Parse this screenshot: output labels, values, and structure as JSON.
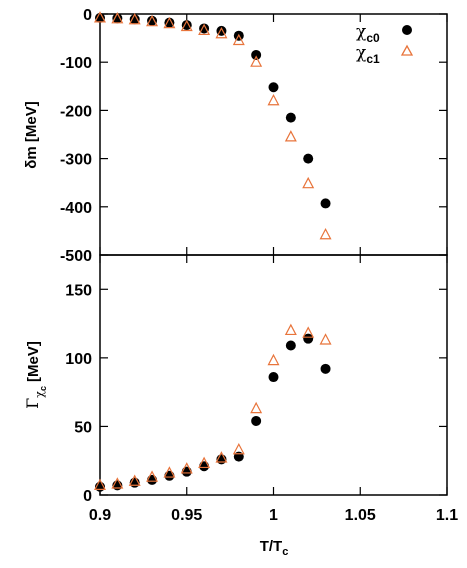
{
  "chart_data": [
    {
      "type": "scatter",
      "panel": "top",
      "xlabel": "",
      "ylabel": "δm [MeV]",
      "xlim": [
        0.9,
        1.1
      ],
      "ylim": [
        -500,
        0
      ],
      "yticks": [
        0,
        -100,
        -200,
        -300,
        -400,
        -500
      ],
      "ytick_labels": [
        "0",
        "-100",
        "-200",
        "-300",
        "-400",
        "-500"
      ],
      "grid": false,
      "legend": {
        "placement": "top-right",
        "entries": [
          {
            "main": "χ",
            "sub": "c0"
          },
          {
            "main": "χ",
            "sub": "c1"
          }
        ]
      },
      "series": [
        {
          "name": "χc0",
          "marker": "filled-circle",
          "color": "#000000",
          "x": [
            0.9,
            0.91,
            0.92,
            0.93,
            0.94,
            0.95,
            0.96,
            0.97,
            0.98,
            0.99,
            1.0,
            1.01,
            1.02,
            1.03
          ],
          "y": [
            -8,
            -9,
            -11,
            -14,
            -18,
            -23,
            -30,
            -35,
            -45,
            -85,
            -152,
            -215,
            -300,
            -393
          ]
        },
        {
          "name": "χc1",
          "marker": "open-triangle",
          "color": "#e8743b",
          "x": [
            0.9,
            0.91,
            0.92,
            0.93,
            0.94,
            0.95,
            0.96,
            0.97,
            0.98,
            0.99,
            1.0,
            1.01,
            1.02,
            1.03
          ],
          "y": [
            -8,
            -10,
            -12,
            -16,
            -20,
            -26,
            -34,
            -41,
            -55,
            -100,
            -180,
            -255,
            -352,
            -458
          ]
        }
      ]
    },
    {
      "type": "scatter",
      "panel": "bottom",
      "xlabel": "T/T",
      "xlabel_sub": "c",
      "ylabel": "Γ",
      "ylabel_sub": "χ",
      "ylabel_subsub": "c",
      "ylabel_unit": "[MeV]",
      "xlim": [
        0.9,
        1.1
      ],
      "ylim": [
        0,
        175
      ],
      "xticks": [
        0.9,
        0.95,
        1.0,
        1.05,
        1.1
      ],
      "xtick_labels": [
        "0.9",
        "0.95",
        "1",
        "1.05",
        "1.1"
      ],
      "yticks": [
        0,
        50,
        100,
        150
      ],
      "ytick_labels": [
        "0",
        "50",
        "100",
        "150"
      ],
      "grid": false,
      "series": [
        {
          "name": "χc0",
          "marker": "filled-circle",
          "color": "#000000",
          "x": [
            0.9,
            0.91,
            0.92,
            0.93,
            0.94,
            0.95,
            0.96,
            0.97,
            0.98,
            0.99,
            1.0,
            1.01,
            1.02,
            1.03
          ],
          "y": [
            6,
            7,
            9,
            11,
            14,
            17,
            21,
            26,
            28,
            54,
            86,
            109,
            114,
            92
          ]
        },
        {
          "name": "χc1",
          "marker": "open-triangle",
          "color": "#e8743b",
          "x": [
            0.9,
            0.91,
            0.92,
            0.93,
            0.94,
            0.95,
            0.96,
            0.97,
            0.98,
            0.99,
            1.0,
            1.01,
            1.02,
            1.03
          ],
          "y": [
            7,
            8,
            10,
            13,
            16,
            19,
            23,
            27,
            33,
            63,
            98,
            120,
            118,
            113
          ]
        }
      ]
    }
  ]
}
